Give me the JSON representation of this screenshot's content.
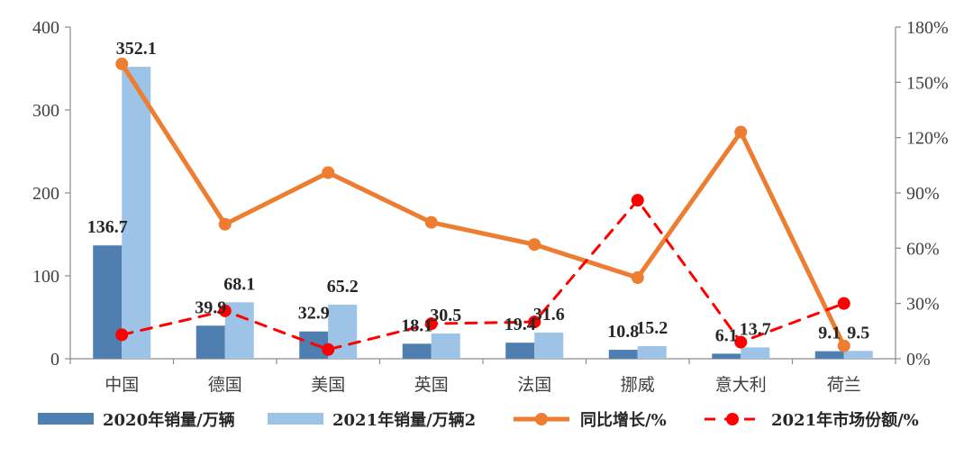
{
  "chart_data": {
    "type": "bar",
    "categories": [
      "中国",
      "德国",
      "美国",
      "英国",
      "法国",
      "挪威",
      "意大利",
      "荷兰"
    ],
    "series": [
      {
        "name": "2020年销量/万辆",
        "kind": "bar",
        "axis": "left",
        "color": "#4e7fb0",
        "values": [
          136.7,
          39.9,
          32.9,
          18.1,
          19.4,
          10.8,
          6.1,
          9.1
        ],
        "labels": [
          "136.7",
          "39.9",
          "32.9",
          "18.1",
          "19.4",
          "10.8",
          "6.1",
          "9.1"
        ]
      },
      {
        "name": "2021年销量/万辆2",
        "kind": "bar",
        "axis": "left",
        "color": "#9dc3e6",
        "values": [
          352.1,
          68.1,
          65.2,
          30.5,
          31.6,
          15.2,
          13.7,
          9.5
        ],
        "labels": [
          "352.1",
          "68.1",
          "65.2",
          "30.5",
          "31.6",
          "15.2",
          "13.7",
          "9.5"
        ]
      },
      {
        "name": "同比增长/%",
        "kind": "line",
        "axis": "right",
        "color": "#ed7d31",
        "values": [
          160,
          73,
          101,
          74,
          62,
          44,
          123,
          7
        ]
      },
      {
        "name": "2021年市场份额/%",
        "kind": "dashed-line",
        "axis": "right",
        "color": "#ff0000",
        "values": [
          13,
          26,
          5,
          19,
          20,
          86,
          9,
          30
        ]
      }
    ],
    "y_left": {
      "min": 0,
      "max": 400,
      "ticks": [
        "0",
        "100",
        "200",
        "300",
        "400"
      ]
    },
    "y_right": {
      "min": 0,
      "max": 180,
      "ticks": [
        "0%",
        "30%",
        "60%",
        "90%",
        "120%",
        "150%",
        "180%"
      ]
    },
    "legend_position": "bottom"
  }
}
